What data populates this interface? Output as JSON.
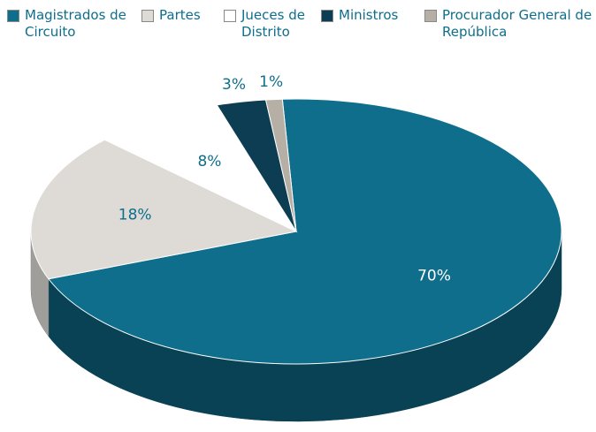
{
  "chart_data": {
    "type": "pie",
    "categories": [
      "Magistrados de Circuito",
      "Partes",
      "Jueces de Distrito",
      "Ministros",
      "Procurador General de la República"
    ],
    "values": [
      70,
      18,
      8,
      3,
      1
    ],
    "value_labels": [
      "70%",
      "18%",
      "8%",
      "3%",
      "1%"
    ],
    "colors": [
      "#0e6e8c",
      "#dedbd6",
      "#ffffff",
      "#0d3d52",
      "#b6afa6"
    ],
    "legend": "top"
  }
}
